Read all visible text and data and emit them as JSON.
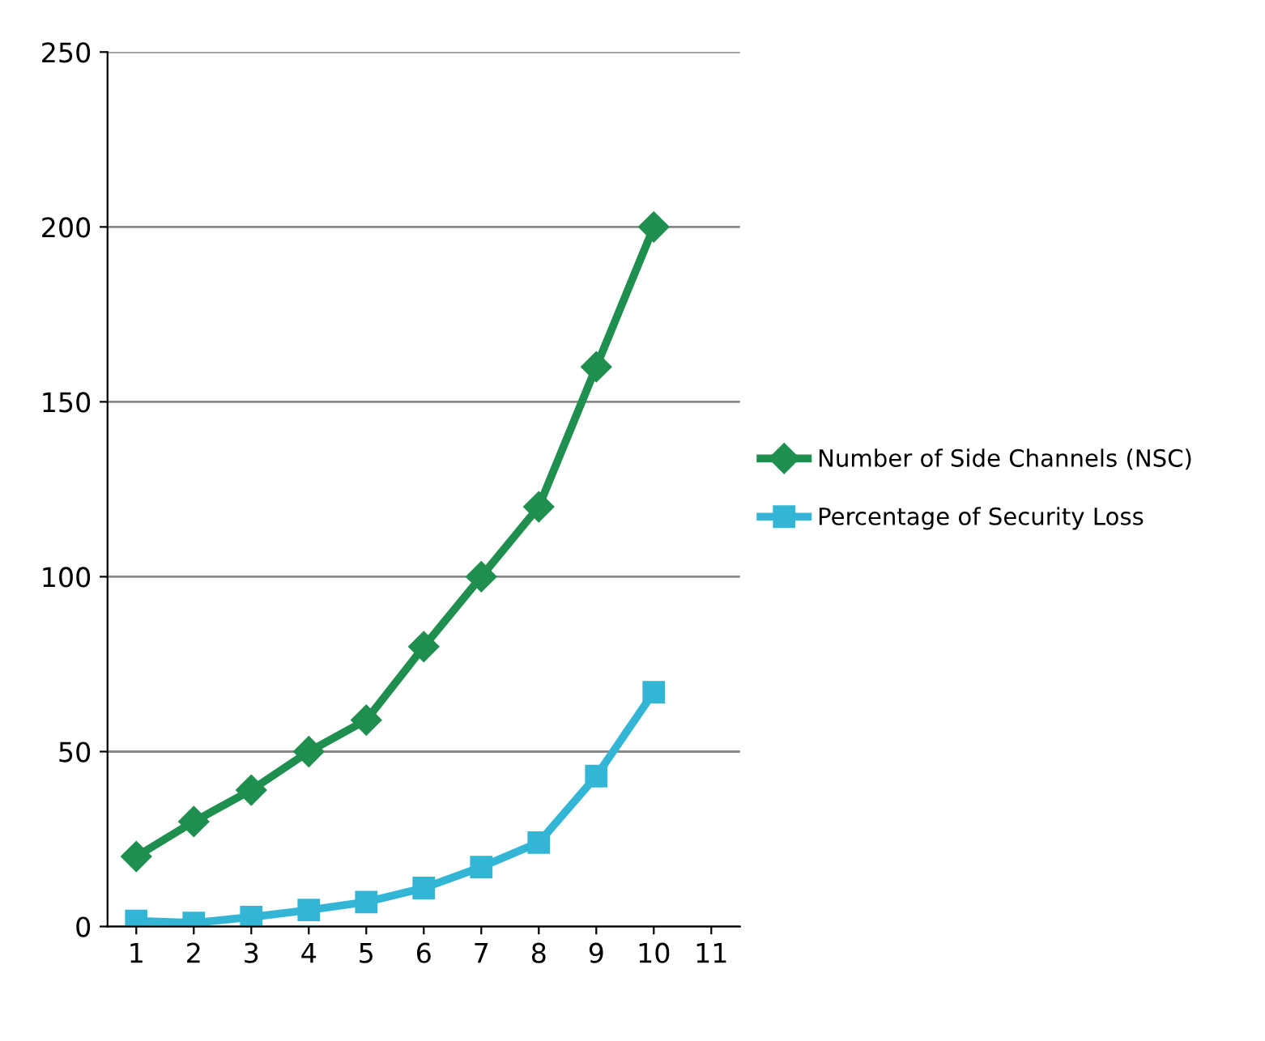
{
  "chart_data": {
    "type": "line",
    "categories": [
      "1",
      "2",
      "3",
      "4",
      "5",
      "6",
      "7",
      "8",
      "9",
      "10",
      "11"
    ],
    "series": [
      {
        "name": "Number of Side Channels (NSC)",
        "color": "#1f8f4f",
        "marker": "diamond",
        "values": [
          20,
          30,
          39,
          50,
          59,
          80,
          100,
          120,
          160,
          200,
          null
        ]
      },
      {
        "name": "Percentage of Security Loss",
        "color": "#33b5d6",
        "marker": "square",
        "values": [
          1.6,
          1,
          2.7,
          4.7,
          7,
          11,
          17,
          24,
          43,
          67,
          null
        ]
      }
    ],
    "ylim": [
      0,
      250
    ],
    "yticks": [
      0,
      50,
      100,
      150,
      200,
      250
    ],
    "grid": "y",
    "legend": "right",
    "line_style": "solid"
  }
}
